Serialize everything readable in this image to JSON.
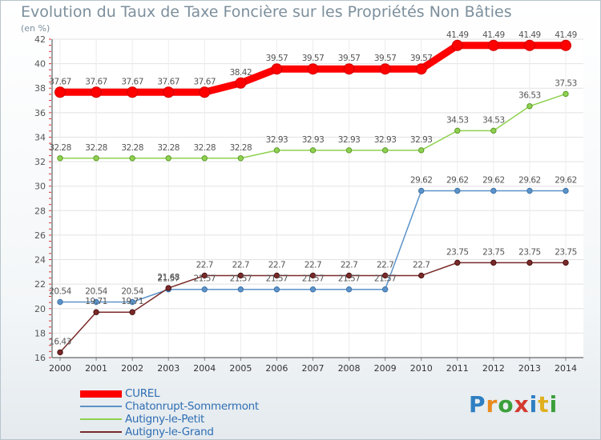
{
  "header": {
    "title": "Evolution du Taux de Taxe Foncière sur les Propriétés Non Bâties",
    "unit": "(en %)"
  },
  "logo": {
    "text": "Proxiti"
  },
  "chart_data": {
    "type": "line",
    "title": "Evolution du Taux de Taxe Foncière sur les Propriétés Non Bâties",
    "ylabel": "(en %)",
    "xlabel": "",
    "ylim": [
      16,
      42
    ],
    "yticks": [
      16,
      18,
      20,
      22,
      24,
      26,
      28,
      30,
      32,
      34,
      36,
      38,
      40,
      42
    ],
    "x": [
      "2000",
      "2001",
      "2002",
      "2003",
      "2004",
      "2005",
      "2006",
      "2007",
      "2008",
      "2009",
      "2010",
      "2011",
      "2012",
      "2013",
      "2014"
    ],
    "grid": true,
    "legend_position": "bottom-left",
    "series": [
      {
        "name": "CUREL",
        "color": "#ff0000",
        "values": [
          37.67,
          37.67,
          37.67,
          37.67,
          37.67,
          38.42,
          39.57,
          39.57,
          39.57,
          39.57,
          39.57,
          41.49,
          41.49,
          41.49,
          41.49
        ],
        "labels": [
          "37.67",
          "37.67",
          "37.67",
          "37.67",
          "37.67",
          "38.42",
          "39.57",
          "39.57",
          "39.57",
          "39.57",
          "39.57",
          "41.49",
          "41.49",
          "41.49",
          "41.49"
        ]
      },
      {
        "name": "Chatonrupt-Sommermont",
        "color": "#5b93c9",
        "values": [
          20.54,
          20.54,
          20.54,
          21.57,
          21.57,
          21.57,
          21.57,
          21.57,
          21.57,
          21.57,
          29.62,
          29.62,
          29.62,
          29.62,
          29.62
        ],
        "labels": [
          "20.54",
          "20.54",
          "20.54",
          "21.57",
          "21.57",
          "21.57",
          "21.57",
          "21.57",
          "21.57",
          "21.57",
          "29.62",
          "29.62",
          "29.62",
          "29.62",
          "29.62"
        ]
      },
      {
        "name": "Autigny-le-Petit",
        "color": "#8fd14f",
        "values": [
          32.28,
          32.28,
          32.28,
          32.28,
          32.28,
          32.28,
          32.93,
          32.93,
          32.93,
          32.93,
          32.93,
          34.53,
          34.53,
          36.53,
          37.53
        ],
        "labels": [
          "32.28",
          "32.28",
          "32.28",
          "32.28",
          "32.28",
          "32.28",
          "32.93",
          "32.93",
          "32.93",
          "32.93",
          "32.93",
          "34.53",
          "34.53",
          "36.53",
          "37.53"
        ]
      },
      {
        "name": "Autigny-le-Grand",
        "color": "#7a2a2a",
        "values": [
          16.43,
          19.71,
          19.71,
          21.68,
          22.7,
          22.7,
          22.7,
          22.7,
          22.7,
          22.7,
          22.7,
          23.75,
          23.75,
          23.75,
          23.75
        ],
        "labels": [
          "16.43",
          "19.71",
          "19.71",
          "21.68",
          "22.7",
          "22.7",
          "22.7",
          "22.7",
          "22.7",
          "22.7",
          "22.7",
          "23.75",
          "23.75",
          "23.75",
          "23.75"
        ]
      }
    ]
  }
}
